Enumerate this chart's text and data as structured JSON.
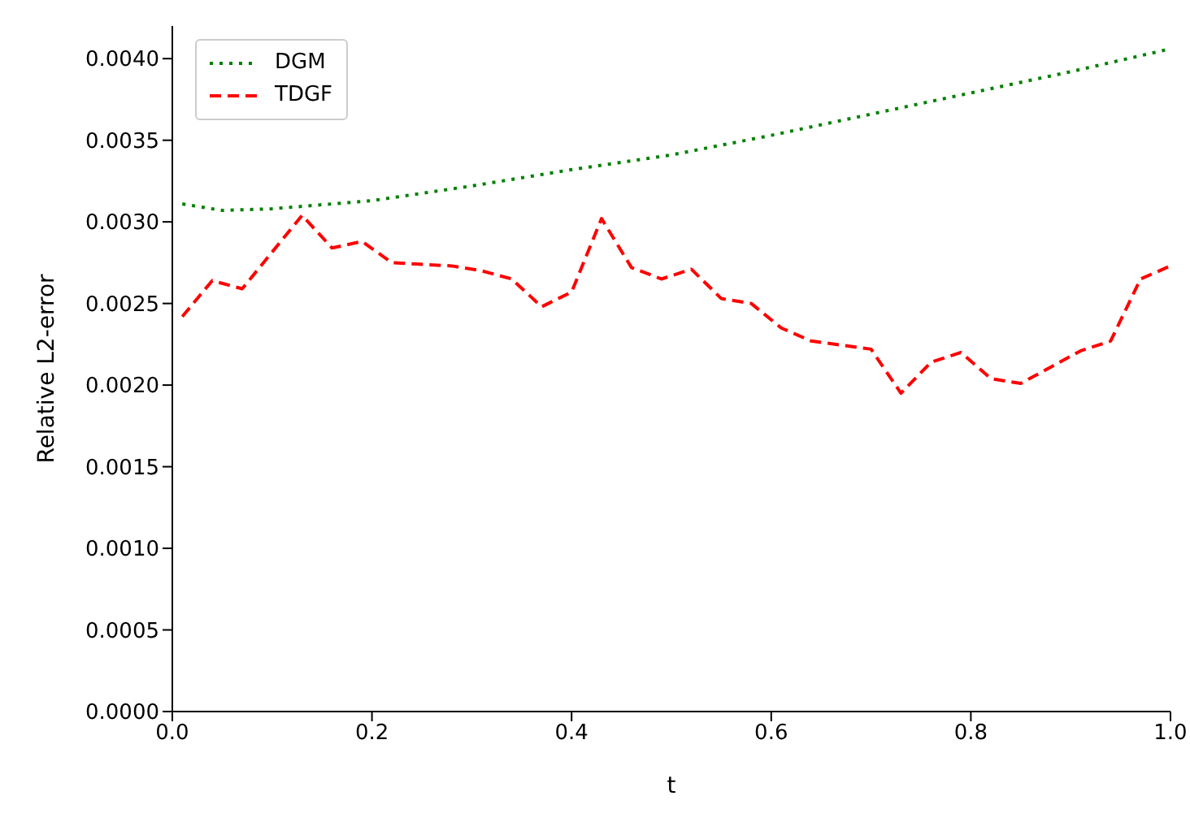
{
  "chart_data": {
    "type": "line",
    "xlabel": "t",
    "ylabel": "Relative L2-error",
    "xlim": [
      0,
      1
    ],
    "ylim": [
      0,
      0.0042
    ],
    "xticks": [
      {
        "value": 0,
        "label": "0.0"
      },
      {
        "value": 0.2,
        "label": "0.2"
      },
      {
        "value": 0.4,
        "label": "0.4"
      },
      {
        "value": 0.6,
        "label": "0.6"
      },
      {
        "value": 0.8,
        "label": "0.8"
      },
      {
        "value": 1,
        "label": "1.0"
      }
    ],
    "yticks": [
      {
        "value": 0,
        "label": "0.0000"
      },
      {
        "value": 0.0005,
        "label": "0.0005"
      },
      {
        "value": 0.001,
        "label": "0.0010"
      },
      {
        "value": 0.0015,
        "label": "0.0015"
      },
      {
        "value": 0.002,
        "label": "0.0020"
      },
      {
        "value": 0.0025,
        "label": "0.0025"
      },
      {
        "value": 0.003,
        "label": "0.0030"
      },
      {
        "value": 0.0035,
        "label": "0.0035"
      },
      {
        "value": 0.004,
        "label": "0.0040"
      }
    ],
    "legend": "top left",
    "grid": false,
    "marker": "none",
    "series": [
      {
        "name": "DGM",
        "color": "#008000",
        "line_style": "dotted",
        "x": [
          0.01,
          0.05,
          0.1,
          0.2,
          0.3,
          0.4,
          0.5,
          0.6,
          0.7,
          0.8,
          0.9,
          1.0
        ],
        "values": [
          0.00311,
          0.00307,
          0.00308,
          0.00313,
          0.00322,
          0.00332,
          0.00341,
          0.00353,
          0.00366,
          0.00379,
          0.00392,
          0.00406
        ]
      },
      {
        "name": "TDGF",
        "color": "#ff0000",
        "line_style": "dashed",
        "x": [
          0.01,
          0.04,
          0.07,
          0.13,
          0.16,
          0.19,
          0.22,
          0.28,
          0.31,
          0.34,
          0.37,
          0.4,
          0.43,
          0.46,
          0.49,
          0.52,
          0.55,
          0.58,
          0.61,
          0.64,
          0.7,
          0.73,
          0.76,
          0.79,
          0.82,
          0.85,
          0.88,
          0.91,
          0.94,
          0.97,
          1.0
        ],
        "values": [
          0.00242,
          0.00264,
          0.00259,
          0.00304,
          0.00284,
          0.00288,
          0.00275,
          0.00273,
          0.0027,
          0.00265,
          0.00248,
          0.00257,
          0.00302,
          0.00272,
          0.00265,
          0.00271,
          0.00253,
          0.0025,
          0.00235,
          0.00227,
          0.00222,
          0.00195,
          0.00214,
          0.0022,
          0.00204,
          0.00201,
          0.00211,
          0.00221,
          0.00227,
          0.00265,
          0.00273
        ]
      }
    ]
  }
}
